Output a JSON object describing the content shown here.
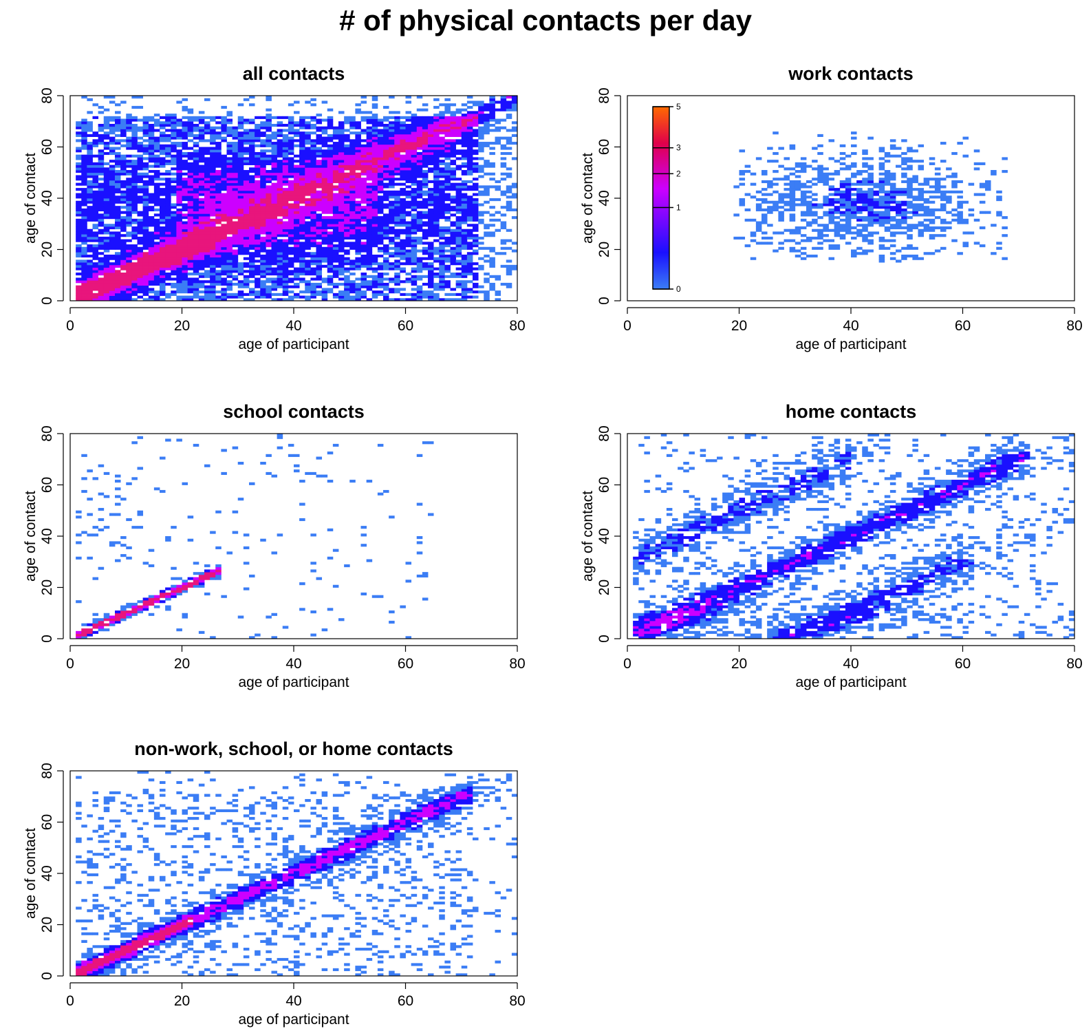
{
  "title": "# of physical contacts per day",
  "colors": {
    "low": "#3b7df5",
    "mid": "#1a10ff",
    "high1": "#cc00ff",
    "high2": "#e0004a",
    "top": "#ff6a00",
    "diagonal": "#e8157c"
  },
  "chart_data": [
    {
      "type": "heatmap",
      "title": "all contacts",
      "xlabel": "age of participant",
      "ylabel": "age of contact",
      "xlim": [
        0,
        80
      ],
      "ylim": [
        0,
        80
      ],
      "xticks": [
        0,
        20,
        40,
        60,
        80
      ],
      "yticks": [
        0,
        20,
        40,
        60,
        80
      ],
      "pattern": "all"
    },
    {
      "type": "heatmap",
      "title": "work contacts",
      "xlabel": "age of participant",
      "ylabel": "age of contact",
      "xlim": [
        0,
        80
      ],
      "ylim": [
        0,
        80
      ],
      "xticks": [
        0,
        20,
        40,
        60,
        80
      ],
      "yticks": [
        0,
        20,
        40,
        60,
        80
      ],
      "pattern": "work",
      "colorbar": {
        "ticks": [
          0,
          1,
          2,
          3,
          5
        ]
      }
    },
    {
      "type": "heatmap",
      "title": "school contacts",
      "xlabel": "age of participant",
      "ylabel": "age of contact",
      "xlim": [
        0,
        80
      ],
      "ylim": [
        0,
        80
      ],
      "xticks": [
        0,
        20,
        40,
        60,
        80
      ],
      "yticks": [
        0,
        20,
        40,
        60,
        80
      ],
      "pattern": "school"
    },
    {
      "type": "heatmap",
      "title": "home contacts",
      "xlabel": "age of participant",
      "ylabel": "age of contact",
      "xlim": [
        0,
        80
      ],
      "ylim": [
        0,
        80
      ],
      "xticks": [
        0,
        20,
        40,
        60,
        80
      ],
      "yticks": [
        0,
        20,
        40,
        60,
        80
      ],
      "pattern": "home"
    },
    {
      "type": "heatmap",
      "title": "non-work, school, or home contacts",
      "xlabel": "age of participant",
      "ylabel": "age of contact",
      "xlim": [
        0,
        80
      ],
      "ylim": [
        0,
        80
      ],
      "xticks": [
        0,
        20,
        40,
        60,
        80
      ],
      "yticks": [
        0,
        20,
        40,
        60,
        80
      ],
      "pattern": "other"
    }
  ]
}
